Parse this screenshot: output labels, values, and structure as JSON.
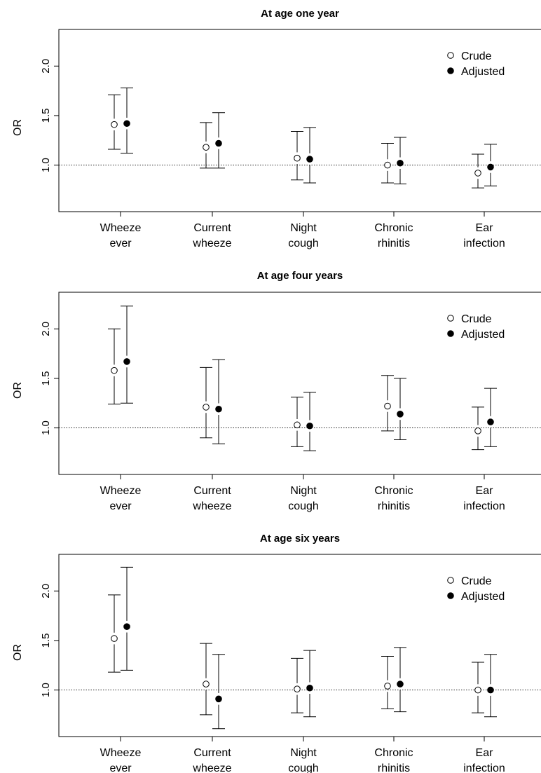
{
  "chart_data": [
    {
      "type": "errorbar",
      "title": "At age one year",
      "ylabel": "OR",
      "ylim": [
        0.53,
        2.37
      ],
      "yticks": [
        "1.0",
        "1.5",
        "2.0"
      ],
      "reference_line": 1.0,
      "legend_position": "top-right",
      "categories": [
        [
          "Wheeze",
          "ever"
        ],
        [
          "Current",
          "wheeze"
        ],
        [
          "Night",
          "cough"
        ],
        [
          "Chronic",
          "rhinitis"
        ],
        [
          "Ear",
          "infection"
        ]
      ],
      "series": [
        {
          "name": "Crude",
          "marker": "open-circle",
          "values": [
            1.41,
            1.18,
            1.07,
            1.0,
            0.92
          ],
          "lower": [
            1.16,
            0.97,
            0.85,
            0.82,
            0.77
          ],
          "upper": [
            1.71,
            1.43,
            1.34,
            1.22,
            1.11
          ]
        },
        {
          "name": "Adjusted",
          "marker": "filled-circle",
          "values": [
            1.42,
            1.22,
            1.06,
            1.02,
            0.98
          ],
          "lower": [
            1.12,
            0.97,
            0.82,
            0.81,
            0.79
          ],
          "upper": [
            1.78,
            1.53,
            1.38,
            1.28,
            1.21
          ]
        }
      ]
    },
    {
      "type": "errorbar",
      "title": "At age four years",
      "ylabel": "OR",
      "ylim": [
        0.53,
        2.37
      ],
      "yticks": [
        "1.0",
        "1.5",
        "2.0"
      ],
      "reference_line": 1.0,
      "legend_position": "top-right",
      "categories": [
        [
          "Wheeze",
          "ever"
        ],
        [
          "Current",
          "wheeze"
        ],
        [
          "Night",
          "cough"
        ],
        [
          "Chronic",
          "rhinitis"
        ],
        [
          "Ear",
          "infection"
        ]
      ],
      "series": [
        {
          "name": "Crude",
          "marker": "open-circle",
          "values": [
            1.58,
            1.21,
            1.03,
            1.22,
            0.97
          ],
          "lower": [
            1.24,
            0.9,
            0.81,
            0.97,
            0.78
          ],
          "upper": [
            2.0,
            1.61,
            1.31,
            1.53,
            1.21
          ]
        },
        {
          "name": "Adjusted",
          "marker": "filled-circle",
          "values": [
            1.67,
            1.19,
            1.02,
            1.14,
            1.06
          ],
          "lower": [
            1.25,
            0.84,
            0.77,
            0.88,
            0.81
          ],
          "upper": [
            2.23,
            1.69,
            1.36,
            1.5,
            1.4
          ]
        }
      ]
    },
    {
      "type": "errorbar",
      "title": "At age six years",
      "ylabel": "OR",
      "ylim": [
        0.53,
        2.37
      ],
      "yticks": [
        "1.0",
        "1.5",
        "2.0"
      ],
      "reference_line": 1.0,
      "legend_position": "top-right",
      "categories": [
        [
          "Wheeze",
          "ever"
        ],
        [
          "Current",
          "wheeze"
        ],
        [
          "Night",
          "cough"
        ],
        [
          "Chronic",
          "rhinitis"
        ],
        [
          "Ear",
          "infection"
        ]
      ],
      "series": [
        {
          "name": "Crude",
          "marker": "open-circle",
          "values": [
            1.52,
            1.06,
            1.01,
            1.04,
            1.0
          ],
          "lower": [
            1.18,
            0.75,
            0.77,
            0.81,
            0.77
          ],
          "upper": [
            1.96,
            1.47,
            1.32,
            1.34,
            1.28
          ]
        },
        {
          "name": "Adjusted",
          "marker": "filled-circle",
          "values": [
            1.64,
            0.91,
            1.02,
            1.06,
            1.0
          ],
          "lower": [
            1.2,
            0.61,
            0.73,
            0.78,
            0.73
          ],
          "upper": [
            2.24,
            1.36,
            1.4,
            1.43,
            1.36
          ]
        }
      ]
    }
  ]
}
